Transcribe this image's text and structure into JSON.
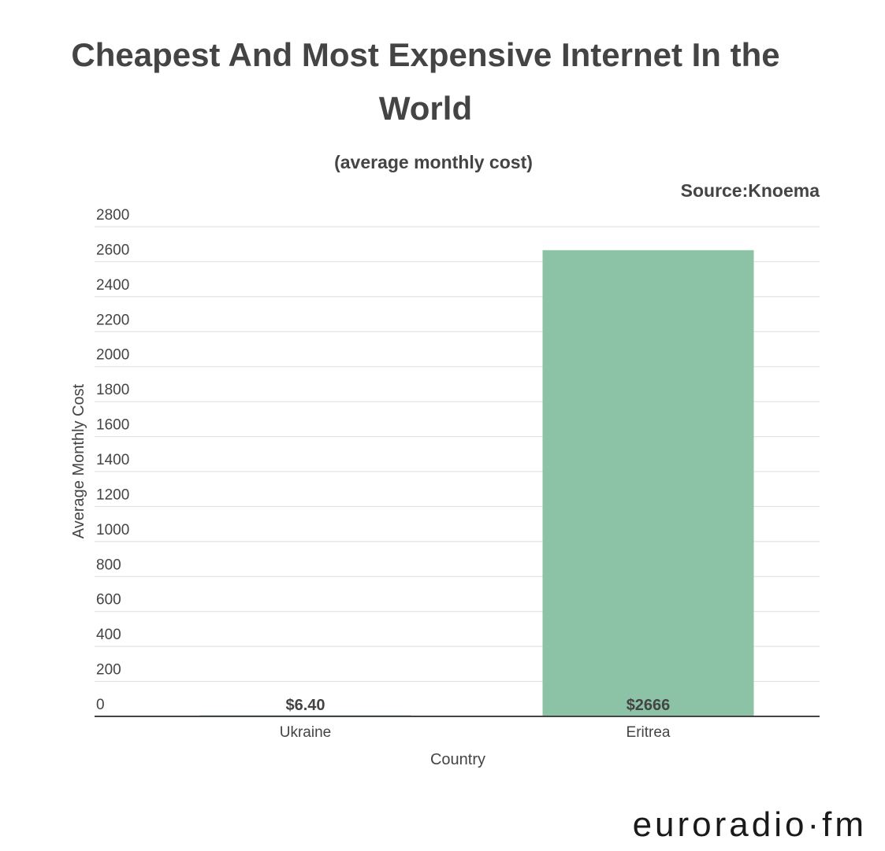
{
  "chart_data": {
    "type": "bar",
    "title": "Cheapest And Most Expensive Internet In the World",
    "subtitle": "(average monthly cost)",
    "source": "Source:Knoema",
    "y_label": "Average Monthly Cost",
    "x_label": "Country",
    "categories": [
      "Ukraine",
      "Eritrea"
    ],
    "values": [
      6.4,
      2666
    ],
    "value_labels": [
      "$6.40",
      "$2666"
    ],
    "color": "#8cc2a5",
    "ylim": [
      0,
      2800
    ],
    "yticks": [
      0,
      200,
      400,
      600,
      800,
      1000,
      1200,
      1400,
      1600,
      1800,
      2000,
      2200,
      2400,
      2600,
      2800
    ],
    "grid": true
  },
  "watermark": "euroradio·fm"
}
